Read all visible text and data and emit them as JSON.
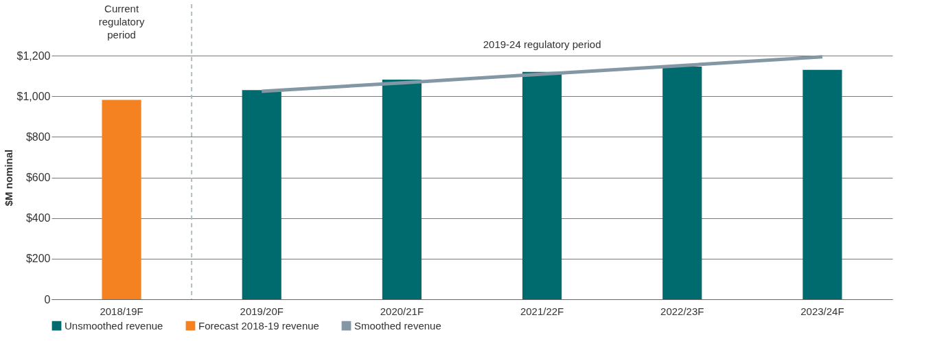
{
  "chart_data": {
    "type": "bar",
    "ylabel": "$M nominal",
    "categories": [
      "2018/19F",
      "2019/20F",
      "2020/21F",
      "2021/22F",
      "2022/23F",
      "2023/24F"
    ],
    "series": [
      {
        "name": "Unsmoothed revenue",
        "color": "#006b6e",
        "values": [
          null,
          1030,
          1082,
          1120,
          1146,
          1130
        ]
      },
      {
        "name": "Forecast 2018-19 revenue",
        "color": "#f58220",
        "values": [
          982,
          null,
          null,
          null,
          null,
          null
        ]
      },
      {
        "name": "Smoothed revenue",
        "type": "line",
        "color": "#8497a4",
        "values": [
          null,
          1024,
          1066,
          1109,
          1151,
          1194
        ]
      }
    ],
    "ylim": [
      0,
      1200
    ],
    "yticks": [
      0,
      {
        "value": 200,
        "label": "$200"
      },
      {
        "value": 400,
        "label": "$400"
      },
      {
        "value": 600,
        "label": "$600"
      },
      {
        "value": 800,
        "label": "$800"
      },
      {
        "value": 1000,
        "label": "$1,000"
      },
      {
        "value": 1200,
        "label": "$1,200"
      }
    ],
    "ref_lines": [
      {
        "axis": "x",
        "value": "2019/20F",
        "color": "#b0bcc4",
        "line_style": "dashed"
      }
    ],
    "annotations": [
      "Current regulatory period",
      "2019-24 regulatory period"
    ],
    "grid": "y",
    "legend": "bottom"
  }
}
